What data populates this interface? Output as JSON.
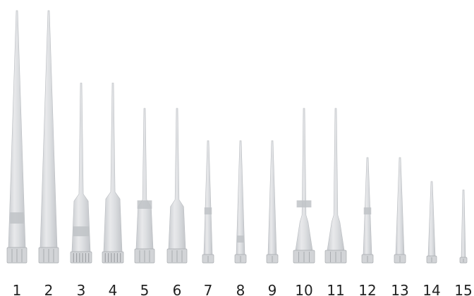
{
  "image": {
    "subject": "pipette tips",
    "background_color": "#ffffff",
    "tip_color": "#d4d6d9",
    "label_color": "#222222"
  },
  "tips": [
    {
      "label": "1",
      "length": "long",
      "type": "filter-band"
    },
    {
      "label": "2",
      "length": "long",
      "type": "plain"
    },
    {
      "label": "3",
      "length": "medium",
      "type": "ribbed-collar-band"
    },
    {
      "label": "4",
      "length": "medium",
      "type": "ribbed-collar"
    },
    {
      "label": "5",
      "length": "medium-short",
      "type": "filter-band"
    },
    {
      "label": "6",
      "length": "medium-short",
      "type": "plain"
    },
    {
      "label": "7",
      "length": "short",
      "type": "filter-band"
    },
    {
      "label": "8",
      "length": "short",
      "type": "filter-band"
    },
    {
      "label": "9",
      "length": "short",
      "type": "plain"
    },
    {
      "label": "10",
      "length": "medium-short",
      "type": "wide-base-band"
    },
    {
      "label": "11",
      "length": "medium-short",
      "type": "wide-base"
    },
    {
      "label": "12",
      "length": "shorter",
      "type": "filter-band"
    },
    {
      "label": "13",
      "length": "shorter",
      "type": "plain"
    },
    {
      "label": "14",
      "length": "shortest",
      "type": "plain"
    },
    {
      "label": "15",
      "length": "micro",
      "type": "plain"
    }
  ]
}
